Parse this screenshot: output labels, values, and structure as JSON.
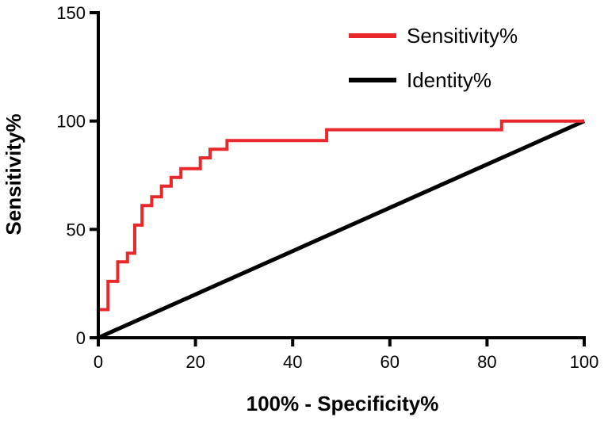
{
  "chart_data": {
    "type": "line",
    "title": "",
    "xlabel": "100% - Specificity%",
    "ylabel": "Sensitivity%",
    "xlim": [
      0,
      100
    ],
    "ylim": [
      0,
      150
    ],
    "x_ticks": [
      0,
      20,
      40,
      60,
      80,
      100
    ],
    "y_ticks": [
      0,
      50,
      100,
      150
    ],
    "x_tick_labels": [
      "0",
      "20",
      "40",
      "60",
      "80",
      "100"
    ],
    "y_tick_labels": [
      "0",
      "50",
      "100",
      "150"
    ],
    "grid": false,
    "legend": "top-right",
    "series": [
      {
        "name": "Sensitivity%",
        "color": "#e8282b",
        "style": "step",
        "x": [
          0,
          0,
          2,
          2,
          4,
          4,
          6,
          6,
          7.5,
          7.5,
          9,
          9,
          11,
          11,
          13,
          13,
          15,
          15,
          17,
          17,
          21,
          21,
          23,
          23,
          26.5,
          26.5,
          47,
          47,
          83,
          83,
          100
        ],
        "y": [
          0,
          13,
          13,
          26,
          26,
          35,
          35,
          39,
          39,
          52,
          52,
          61,
          61,
          65,
          65,
          70,
          70,
          74,
          74,
          78,
          78,
          83,
          83,
          87,
          87,
          91,
          91,
          96,
          96,
          100,
          100
        ]
      },
      {
        "name": "Identity%",
        "color": "#000000",
        "style": "line",
        "x": [
          0,
          100
        ],
        "y": [
          0,
          100
        ]
      }
    ]
  }
}
